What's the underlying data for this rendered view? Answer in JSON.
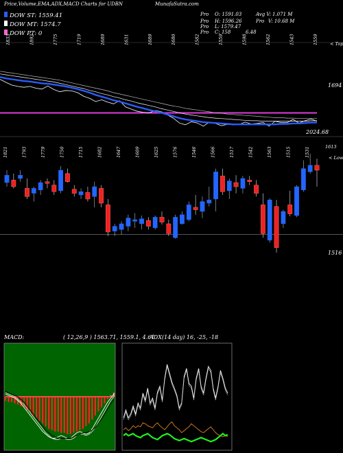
{
  "header": {
    "title": "Price,Volume,EMA,ADX,MACD Charts for UDBN",
    "site": "MunafaSutra.com",
    "stats": [
      {
        "k": "Pro",
        "v": "O: 1591.03"
      },
      {
        "k": "Pro",
        "v": "H: 1596.26"
      },
      {
        "k": "Pro",
        "v": "L: 1579.47"
      },
      {
        "k": "Pro",
        "v": "C: 158"
      },
      {
        "k": "Avg V:",
        "v": "1.071 M"
      },
      {
        "k": "Pro",
        "v": "V: 10.68 M"
      },
      {
        "k": "",
        "v": "6.48"
      }
    ]
  },
  "legend": [
    {
      "label": "DOW ST: 1559.41",
      "color": "#2a5cff"
    },
    {
      "label": "DOW MT: 1574.7",
      "color": "#ffffff"
    },
    {
      "label": "DOW PT: 0",
      "color": "#ff66cc"
    }
  ],
  "colors": {
    "up": "#2266ff",
    "down": "#ee2222",
    "pink": "#e23ce0",
    "green": "#22ee22",
    "orange": "#e08020"
  },
  "chart_data": [
    {
      "type": "line",
      "panel": "ema",
      "top_ticks": [
        "1833",
        "1892",
        "1775",
        "1719",
        "1689",
        "1631",
        "1689",
        "1680",
        "1582",
        "1559",
        "1598",
        "1562",
        "1543",
        "1559"
      ],
      "right_labels": {
        "top": "< Top",
        "high": "1694",
        "last": "2024.68"
      },
      "pink_line": 1574.7,
      "ylim": [
        1520,
        1720
      ],
      "series": [
        {
          "values": [
            1650,
            1643,
            1637,
            1634,
            1632,
            1634,
            1630,
            1628,
            1635,
            1627,
            1622,
            1625,
            1624,
            1620,
            1612,
            1607,
            1600,
            1604,
            1599,
            1595,
            1602,
            1588,
            1583,
            1578,
            1576,
            1575,
            1580,
            1577,
            1570,
            1563,
            1552,
            1548,
            1555,
            1552,
            1545,
            1554,
            1551,
            1546,
            1549,
            1548,
            1549,
            1554,
            1550,
            1551,
            1553,
            1545,
            1556,
            1553,
            1553,
            1560,
            1552,
            1557,
            1561,
            1556
          ]
        },
        {
          "values": [
            1655,
            1652,
            1650,
            1648,
            1646,
            1645,
            1643,
            1641,
            1640,
            1638,
            1636,
            1634,
            1631,
            1628,
            1624,
            1620,
            1615,
            1611,
            1607,
            1603,
            1600,
            1596,
            1592,
            1588,
            1585,
            1581,
            1578,
            1575,
            1571,
            1567,
            1563,
            1560,
            1558,
            1556,
            1554,
            1553,
            1552,
            1551,
            1550,
            1549,
            1549,
            1549,
            1549,
            1549,
            1549,
            1549,
            1549,
            1550,
            1550,
            1551,
            1551,
            1552,
            1553,
            1553
          ]
        },
        {
          "values": [
            1662,
            1660,
            1658,
            1656,
            1654,
            1652,
            1650,
            1648,
            1646,
            1644,
            1641,
            1638,
            1635,
            1632,
            1629,
            1625,
            1622,
            1618,
            1615,
            1611,
            1608,
            1604,
            1601,
            1597,
            1594,
            1591,
            1588,
            1584,
            1581,
            1578,
            1575,
            1572,
            1570,
            1568,
            1566,
            1564,
            1563,
            1562,
            1561,
            1560,
            1559,
            1558,
            1557,
            1557,
            1556,
            1556,
            1556,
            1556,
            1556,
            1556,
            1556,
            1556,
            1557,
            1557
          ]
        },
        {
          "values": [
            1668,
            1666,
            1664,
            1662,
            1660,
            1658,
            1656,
            1654,
            1652,
            1650,
            1648,
            1645,
            1642,
            1639,
            1636,
            1633,
            1630,
            1627,
            1624,
            1620,
            1617,
            1614,
            1611,
            1608,
            1605,
            1602,
            1599,
            1596,
            1593,
            1590,
            1588,
            1585,
            1583,
            1581,
            1579,
            1577,
            1575,
            1574,
            1572,
            1571,
            1570,
            1569,
            1568,
            1567,
            1566,
            1565,
            1564,
            1564,
            1563,
            1563,
            1562,
            1562,
            1562,
            1562
          ]
        }
      ]
    },
    {
      "type": "bar",
      "panel": "candles",
      "top_ticks": [
        "1821",
        "1793",
        "1779",
        "1750",
        "1715",
        "1682",
        "1647",
        "1609",
        "1625",
        "1576",
        "1546",
        "1566",
        "1517",
        "1542",
        "1563",
        "1515",
        "1531"
      ],
      "right_labels": {
        "top": "1613",
        "low": "< Low",
        "bottom": "1516"
      },
      "ylim": [
        1500,
        1640
      ],
      "candles": [
        {
          "o": 1595,
          "h": 1610,
          "l": 1590,
          "c": 1604
        },
        {
          "o": 1598,
          "h": 1606,
          "l": 1588,
          "c": 1590
        },
        {
          "o": 1600,
          "h": 1610,
          "l": 1596,
          "c": 1604
        },
        {
          "o": 1588,
          "h": 1600,
          "l": 1575,
          "c": 1578
        },
        {
          "o": 1582,
          "h": 1590,
          "l": 1572,
          "c": 1588
        },
        {
          "o": 1586,
          "h": 1598,
          "l": 1580,
          "c": 1595
        },
        {
          "o": 1596,
          "h": 1600,
          "l": 1588,
          "c": 1594
        },
        {
          "o": 1592,
          "h": 1598,
          "l": 1580,
          "c": 1584
        },
        {
          "o": 1585,
          "h": 1615,
          "l": 1582,
          "c": 1610
        },
        {
          "o": 1606,
          "h": 1612,
          "l": 1595,
          "c": 1596
        },
        {
          "o": 1587,
          "h": 1592,
          "l": 1578,
          "c": 1582
        },
        {
          "o": 1580,
          "h": 1588,
          "l": 1575,
          "c": 1584
        },
        {
          "o": 1583,
          "h": 1590,
          "l": 1572,
          "c": 1575
        },
        {
          "o": 1578,
          "h": 1596,
          "l": 1565,
          "c": 1590
        },
        {
          "o": 1588,
          "h": 1592,
          "l": 1565,
          "c": 1570
        },
        {
          "o": 1568,
          "h": 1575,
          "l": 1530,
          "c": 1535
        },
        {
          "o": 1536,
          "h": 1545,
          "l": 1530,
          "c": 1542
        },
        {
          "o": 1538,
          "h": 1548,
          "l": 1532,
          "c": 1545
        },
        {
          "o": 1542,
          "h": 1556,
          "l": 1536,
          "c": 1552
        },
        {
          "o": 1548,
          "h": 1558,
          "l": 1540,
          "c": 1550
        },
        {
          "o": 1545,
          "h": 1555,
          "l": 1538,
          "c": 1551
        },
        {
          "o": 1549,
          "h": 1553,
          "l": 1538,
          "c": 1542
        },
        {
          "o": 1540,
          "h": 1555,
          "l": 1538,
          "c": 1553
        },
        {
          "o": 1553,
          "h": 1560,
          "l": 1544,
          "c": 1547
        },
        {
          "o": 1545,
          "h": 1550,
          "l": 1530,
          "c": 1533
        },
        {
          "o": 1528,
          "h": 1556,
          "l": 1527,
          "c": 1553
        },
        {
          "o": 1545,
          "h": 1560,
          "l": 1544,
          "c": 1556
        },
        {
          "o": 1550,
          "h": 1572,
          "l": 1548,
          "c": 1568
        },
        {
          "o": 1565,
          "h": 1580,
          "l": 1556,
          "c": 1562
        },
        {
          "o": 1560,
          "h": 1578,
          "l": 1552,
          "c": 1572
        },
        {
          "o": 1570,
          "h": 1590,
          "l": 1566,
          "c": 1574
        },
        {
          "o": 1575,
          "h": 1612,
          "l": 1560,
          "c": 1608
        },
        {
          "o": 1603,
          "h": 1612,
          "l": 1580,
          "c": 1584
        },
        {
          "o": 1585,
          "h": 1600,
          "l": 1575,
          "c": 1597
        },
        {
          "o": 1595,
          "h": 1604,
          "l": 1582,
          "c": 1590
        },
        {
          "o": 1588,
          "h": 1603,
          "l": 1582,
          "c": 1600
        },
        {
          "o": 1598,
          "h": 1603,
          "l": 1592,
          "c": 1596
        },
        {
          "o": 1592,
          "h": 1598,
          "l": 1578,
          "c": 1582
        },
        {
          "o": 1568,
          "h": 1582,
          "l": 1528,
          "c": 1533
        },
        {
          "o": 1525,
          "h": 1576,
          "l": 1522,
          "c": 1574
        },
        {
          "o": 1566,
          "h": 1574,
          "l": 1510,
          "c": 1516
        },
        {
          "o": 1545,
          "h": 1562,
          "l": 1540,
          "c": 1560
        },
        {
          "o": 1568,
          "h": 1585,
          "l": 1554,
          "c": 1557
        },
        {
          "o": 1555,
          "h": 1592,
          "l": 1553,
          "c": 1590
        },
        {
          "o": 1586,
          "h": 1622,
          "l": 1584,
          "c": 1612
        },
        {
          "o": 1608,
          "h": 1630,
          "l": 1606,
          "c": 1616
        },
        {
          "o": 1616,
          "h": 1624,
          "l": 1590,
          "c": 1610
        }
      ],
      "hline": 1532
    },
    {
      "type": "area",
      "panel": "macd",
      "title": "MACD:",
      "values_text": "( 12,26,9 ) 1563.71, 1559.1, 4.61",
      "hist": [
        -3,
        -4,
        -4,
        -5,
        -6,
        -7,
        -8,
        -10,
        -12,
        -14,
        -16,
        -18,
        -20,
        -22,
        -24,
        -25,
        -26,
        -26,
        -27,
        -27,
        -28,
        -28,
        -27,
        -26,
        -25,
        -24,
        -22,
        -20,
        -17,
        -14,
        -11,
        -8,
        -5,
        -2,
        1,
        3
      ],
      "lines": [
        {
          "values": [
            2,
            1,
            0,
            -1,
            -3,
            -5,
            -8,
            -11,
            -14,
            -17,
            -20,
            -23,
            -26,
            -28,
            -30,
            -31,
            -31,
            -30,
            -29,
            -30,
            -31,
            -31,
            -29,
            -27,
            -26,
            -27,
            -28,
            -27,
            -24,
            -20,
            -16,
            -12,
            -8,
            -4,
            -1,
            2
          ]
        },
        {
          "values": [
            3,
            2,
            1,
            0,
            -2,
            -4,
            -6,
            -9,
            -12,
            -15,
            -18,
            -21,
            -24,
            -27,
            -29,
            -31,
            -32,
            -32,
            -31,
            -31,
            -32,
            -32,
            -31,
            -29,
            -28,
            -28,
            -29,
            -28,
            -26,
            -23,
            -19,
            -15,
            -11,
            -7,
            -3,
            0
          ]
        },
        {
          "values": [
            4,
            3,
            2,
            1,
            0,
            -2,
            -4,
            -7,
            -10,
            -13,
            -16,
            -19,
            -22,
            -25,
            -27,
            -29,
            -30,
            -31,
            -31,
            -31,
            -31,
            -31,
            -30,
            -29,
            -28,
            -27,
            -27,
            -26,
            -25,
            -23,
            -20,
            -17,
            -13,
            -9,
            -5,
            -2
          ]
        }
      ],
      "ylim": [
        -40,
        40
      ]
    },
    {
      "type": "line",
      "panel": "adx",
      "title": "ADX",
      "values_text": "(14 day) 16, -25, -18",
      "ylim": [
        0,
        100
      ],
      "series": [
        {
          "values": [
            30,
            38,
            30,
            34,
            42,
            34,
            45,
            40,
            55,
            48,
            60,
            45,
            50,
            40,
            56,
            62,
            48,
            70,
            84,
            75,
            66,
            60,
            53,
            40,
            45,
            72,
            80,
            65,
            62,
            50,
            70,
            80,
            62,
            55,
            70,
            82,
            78,
            60,
            50,
            62,
            78,
            70,
            60,
            55
          ]
        },
        {
          "values": [
            18,
            20,
            17,
            19,
            22,
            20,
            22,
            21,
            25,
            24,
            22,
            21,
            20,
            23,
            25,
            22,
            20,
            18,
            21,
            24,
            26,
            22,
            20,
            18,
            15,
            17,
            19,
            21,
            24,
            22,
            20,
            18,
            16,
            15,
            17,
            19,
            21,
            18,
            15,
            13,
            12,
            11,
            12,
            11
          ]
        },
        {
          "values": [
            12,
            14,
            12,
            13,
            14,
            12,
            11,
            10,
            12,
            13,
            14,
            12,
            10,
            9,
            8,
            10,
            12,
            13,
            14,
            13,
            11,
            9,
            8,
            7,
            8,
            9,
            8,
            7,
            6,
            7,
            8,
            9,
            10,
            9,
            8,
            7,
            6,
            7,
            8,
            10,
            12,
            14,
            12,
            13
          ]
        }
      ]
    }
  ]
}
